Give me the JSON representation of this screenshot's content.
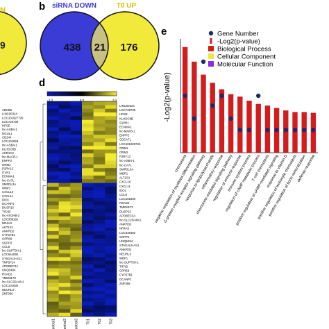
{
  "panel_labels": {
    "b": "b",
    "d": "d",
    "e": "e"
  },
  "panel_a_partial": {
    "title": "N",
    "count": "9"
  },
  "venn": {
    "set1_label": "siRNA DOWN",
    "set2_label": "T0 UP",
    "only1": "438",
    "both": "21",
    "only2": "176",
    "set1_color": "#3b3bd6",
    "set2_color": "#f2ea3a",
    "overlap_color": "#c9c084"
  },
  "heatmap": {
    "scale_min": "-2.0",
    "scale_mid": "0.0",
    "scale_max": "2.0",
    "low_color": "#0a1cb8",
    "mid_color": "#000000",
    "high_color": "#f4ea30",
    "samples": [
      "Control1",
      "Control2",
      "Control3",
      "T01",
      "T02",
      "T03"
    ],
    "left_genes": [
      "ABCB5",
      "LINC00324",
      "LOC101927726",
      "LOC729739",
      "HPSE",
      "lnc-ASB4-1",
      "MCUL1",
      "CD244",
      "LOC101928",
      "lnc-ASB4-1",
      "KLHDC8B",
      "AKR1C3",
      "lnc-MAFB-1",
      "ENPP2",
      "ORM1",
      "P2RY13",
      "ITLN1",
      "ECNMA1",
      "lnc-CA7L",
      "SMPDL3A",
      "WBP1",
      "CXCL10",
      "CXCL11",
      "IDO1",
      "DCANP1",
      "DUSP13",
      "TIFAB",
      "lnc-ATOHB-2",
      "LOC339192",
      "NR4A3",
      "AKT1S1",
      "ANKRD2",
      "CYP27B1",
      "GPR68",
      "SGPP2",
      "CCL8",
      "lnc-SUPT3H-1",
      "LOC644090",
      "ST6GAL5-AS1",
      "TNFSF14",
      "APOBEC3A",
      "UNQ6494",
      "RSAD2",
      "TMEM173",
      "lnc-SLC25A48-2",
      "LOC101930",
      "NEURL3",
      "ZNF366"
    ],
    "right_genes": [
      "LINC00324",
      "LOC729739",
      "HPSE",
      "KLHDC8B",
      "S1PR1",
      "ECNMA1",
      "lnc-MAFB-1",
      "ENPP2",
      "CDCA7L",
      "LOC101929726",
      "ORM1",
      "ORM2",
      "P2RY13",
      "lnc-ASB4-1",
      "lnc-CA7L",
      "SMPDL3A",
      "WBP1",
      "ALT1S1",
      "CXCL10",
      "CXCL11",
      "IDO1",
      "CCL8",
      "LOC101930",
      "RSAD2",
      "TMEM173",
      "DUSP13",
      "APOBEC3A",
      "lnc-SLC25A48-2",
      "ANKRD2",
      "NR4A3",
      "LOC339192",
      "SGPP2",
      "UNQ6494",
      "ST6GAL5-AS1",
      "ANKRD2",
      "NEURL3",
      "WBP1",
      "lnc-SUPT3H-1",
      "TIFAB",
      "GPR68",
      "CYP27B1",
      "DCANP1",
      "ZNF366"
    ]
  },
  "chart_data": {
    "type": "bar",
    "ylabel": "-Log2(p-value)",
    "legend": [
      {
        "label": "Gene Number",
        "color": "#1a2a6c",
        "marker": "dot"
      },
      {
        "label": "-Log2(p-value)",
        "color": "#d41c1c",
        "marker": "bar"
      },
      {
        "label": "Biological Process",
        "color": "#d41c1c",
        "marker": "square"
      },
      {
        "label": "Cellular Component",
        "color": "#f2e43a",
        "marker": "square"
      },
      {
        "label": "Molecular Function",
        "color": "#8a2be2",
        "marker": "square"
      }
    ],
    "legend_position": "top-right",
    "ylim": [
      0,
      14
    ],
    "categories": [
      "chemotaxis",
      "negative regulation of myoblast differentiation",
      "G-protein coupled receptor signaling pathway",
      "response to lipopolysaccharide",
      "inflammatory response",
      "chemokine-mediated signaling pathway",
      "regulation of immune response",
      "immune system process",
      "regulation of cAMP metabolic process",
      "T cell chemotaxis",
      "positive regulation of cAMP-mediated signaling",
      "response to vitamin D",
      "positive regulation of leukocyte chemotaxis",
      "positive regulation of bone mineralization",
      "defense response"
    ],
    "series": [
      {
        "name": "-Log2(p-value)",
        "values": [
          13.0,
          11.2,
          9.6,
          8.6,
          7.8,
          7.2,
          6.9,
          6.4,
          6.0,
          5.8,
          5.5,
          5.2,
          5.0,
          5.0,
          4.9
        ]
      },
      {
        "name": "Gene Number",
        "values": [
          7.0,
          4.2,
          11.2,
          5.8,
          7.0,
          4.2,
          2.8,
          2.8,
          7.0,
          2.8,
          2.8,
          2.8,
          2.8,
          2.8,
          2.8
        ]
      }
    ]
  }
}
